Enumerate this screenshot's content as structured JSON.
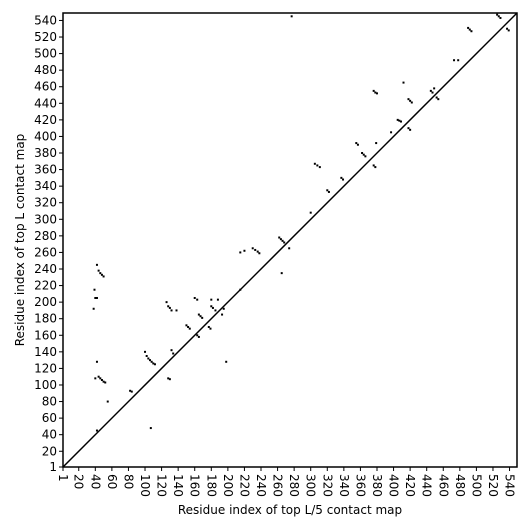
{
  "chart_data": {
    "type": "scatter",
    "xlabel": "Residue index of top L/5 contact map",
    "ylabel": "Residue index of top L contact map",
    "xlim": [
      1,
      549
    ],
    "ylim": [
      1,
      549
    ],
    "xticks": [
      1,
      20,
      40,
      60,
      80,
      100,
      120,
      140,
      160,
      180,
      200,
      220,
      240,
      260,
      280,
      300,
      320,
      340,
      360,
      380,
      400,
      420,
      440,
      460,
      480,
      500,
      520,
      540
    ],
    "yticks": [
      1,
      20,
      40,
      60,
      80,
      100,
      120,
      140,
      160,
      180,
      200,
      220,
      240,
      260,
      280,
      300,
      320,
      340,
      360,
      380,
      400,
      420,
      440,
      460,
      480,
      500,
      520,
      540
    ],
    "color": "#000000",
    "diagonal": true,
    "x": [
      277,
      490,
      492,
      494,
      525,
      527,
      529,
      537,
      539,
      376,
      378,
      380,
      418,
      420,
      422,
      405,
      407,
      409,
      418,
      420,
      445,
      447,
      449,
      452,
      454,
      473,
      478,
      355,
      357,
      362,
      364,
      366,
      376,
      378,
      379,
      397,
      412,
      305,
      308,
      311,
      320,
      322,
      337,
      339,
      300,
      262,
      264,
      266,
      268,
      230,
      233,
      236,
      238,
      215,
      220,
      274,
      265,
      42,
      44,
      46,
      48,
      50,
      39,
      40,
      42,
      38,
      126,
      128,
      130,
      132,
      138,
      160,
      163,
      165,
      167,
      169,
      150,
      152,
      154,
      163,
      165,
      177,
      179,
      180,
      182,
      185,
      180,
      188,
      193,
      195,
      100,
      102,
      104,
      106,
      108,
      110,
      112,
      128,
      130,
      132,
      134,
      44,
      46,
      48,
      50,
      52,
      40,
      42,
      82,
      84,
      55,
      107,
      42,
      198,
      215
    ],
    "values": [
      545,
      531,
      529,
      527,
      547,
      545,
      543,
      530,
      528,
      455,
      453,
      452,
      445,
      443,
      441,
      420,
      419,
      418,
      410,
      408,
      455,
      453,
      458,
      447,
      445,
      492,
      492,
      392,
      390,
      380,
      378,
      376,
      365,
      363,
      392,
      405,
      465,
      367,
      365,
      363,
      335,
      333,
      350,
      348,
      308,
      278,
      276,
      274,
      272,
      265,
      263,
      261,
      259,
      260,
      262,
      265,
      235,
      245,
      238,
      235,
      233,
      231,
      215,
      205,
      205,
      192,
      200,
      195,
      193,
      190,
      190,
      205,
      203,
      185,
      183,
      181,
      172,
      170,
      168,
      160,
      158,
      170,
      168,
      195,
      193,
      190,
      203,
      203,
      185,
      192,
      140,
      135,
      132,
      130,
      128,
      126,
      125,
      108,
      107,
      142,
      138,
      110,
      108,
      106,
      104,
      103,
      108,
      128,
      93,
      92,
      80,
      48,
      45,
      128,
      215
    ]
  }
}
